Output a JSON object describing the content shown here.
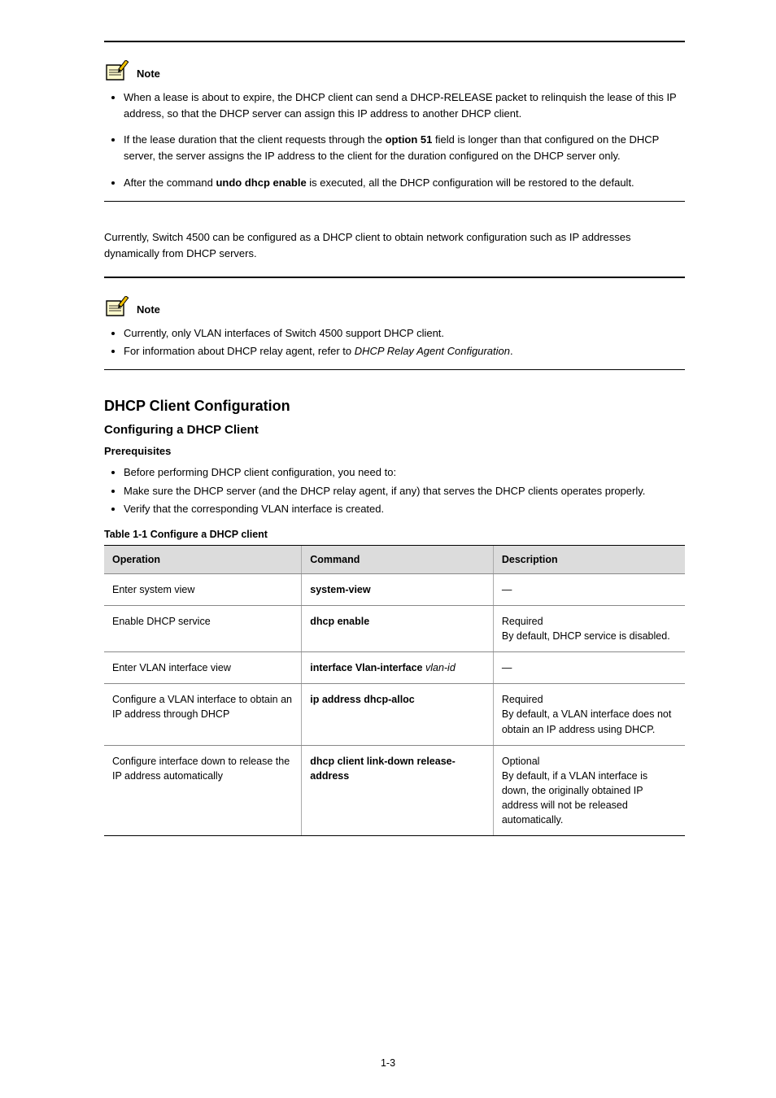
{
  "page_number": "1-3",
  "colors": {
    "icon_paper": "#fff9cc",
    "icon_outline": "#000000",
    "icon_pencil_body": "#f0c000",
    "icon_pencil_tip": "#000000",
    "table_header_bg": "#dcdcdc",
    "rule": "#000000",
    "cell_border": "#888888"
  },
  "note1": {
    "label": "Note",
    "bullets": [
      {
        "parts": [
          {
            "t": "When a lease is about to expire, the DHCP client can send a DHCP-RELEASE packet to relinquish the lease of this IP address, so that the DHCP server can assign this IP address to another DHCP client."
          }
        ]
      },
      {
        "parts": [
          {
            "t": "If the lease duration that the client requests through the "
          },
          {
            "t": "option 51",
            "b": true
          },
          {
            "t": " field is longer than that configured on the DHCP server, the server assigns the IP address to the client for the duration configured on the DHCP server only."
          }
        ]
      },
      {
        "parts": [
          {
            "t": "After the command "
          },
          {
            "t": "undo dhcp enable ",
            "b": true
          },
          {
            "t": "is executed, all the DHCP configuration will be restored to the default."
          }
        ]
      }
    ]
  },
  "para1": {
    "parts": [
      {
        "t": "Currently, Switch 4500 can be configured as a DHCP client to obtain network configuration such as IP addresses dynamically from DHCP servers."
      }
    ]
  },
  "note2": {
    "label": "Note",
    "bullets": [
      {
        "parts": [
          {
            "t": "Currently, only VLAN interfaces of Switch 4500 support DHCP client."
          }
        ]
      },
      {
        "parts": [
          {
            "t": "For information about DHCP relay agent, refer to "
          },
          {
            "t": "DHCP Relay Agent Configuration",
            "i": true
          },
          {
            "t": "."
          }
        ]
      }
    ]
  },
  "section_h2": "DHCP Client Configuration",
  "section_h3": "Configuring a DHCP Client",
  "prereq_label": "Prerequisites",
  "prereq_bullets": [
    "Before performing DHCP client configuration, you need to:",
    "Make sure the DHCP server (and the DHCP relay agent, if any) that serves the DHCP clients operates properly.",
    "Verify that the corresponding VLAN interface is created."
  ],
  "table": {
    "caption": "Table 1-1 Configure a DHCP client",
    "columns": [
      "Operation",
      "Command",
      "Description"
    ],
    "col_widths": [
      "34%",
      "33%",
      "33%"
    ],
    "rows": [
      [
        [
          {
            "t": "Enter system view"
          }
        ],
        [
          {
            "t": "system-view",
            "b": true
          }
        ],
        [
          {
            "t": "—"
          }
        ]
      ],
      [
        [
          {
            "t": "Enable DHCP service"
          }
        ],
        [
          {
            "t": "dhcp enable",
            "b": true
          }
        ],
        [
          {
            "t": "Required"
          },
          {
            "br": true
          },
          {
            "t": "By default, DHCP service is disabled."
          }
        ]
      ],
      [
        [
          {
            "t": "Enter VLAN interface view"
          }
        ],
        [
          {
            "t": "interface Vlan-interface ",
            "b": true
          },
          {
            "t": "vlan-id",
            "i": true
          }
        ],
        [
          {
            "t": "—"
          }
        ]
      ],
      [
        [
          {
            "t": "Configure a VLAN interface to obtain an IP address through DHCP"
          }
        ],
        [
          {
            "t": "ip address dhcp-alloc",
            "b": true
          }
        ],
        [
          {
            "t": "Required"
          },
          {
            "br": true
          },
          {
            "t": "By default, a VLAN interface does not obtain an IP address using DHCP."
          }
        ]
      ],
      [
        [
          {
            "t": "Configure interface down to release the IP address automatically"
          }
        ],
        [
          {
            "t": "dhcp client link-down release-address",
            "b": true
          }
        ],
        [
          {
            "t": "Optional"
          },
          {
            "br": true
          },
          {
            "t": "By default, if a VLAN interface is down, the originally obtained IP address will not be released automatically."
          }
        ]
      ]
    ]
  }
}
